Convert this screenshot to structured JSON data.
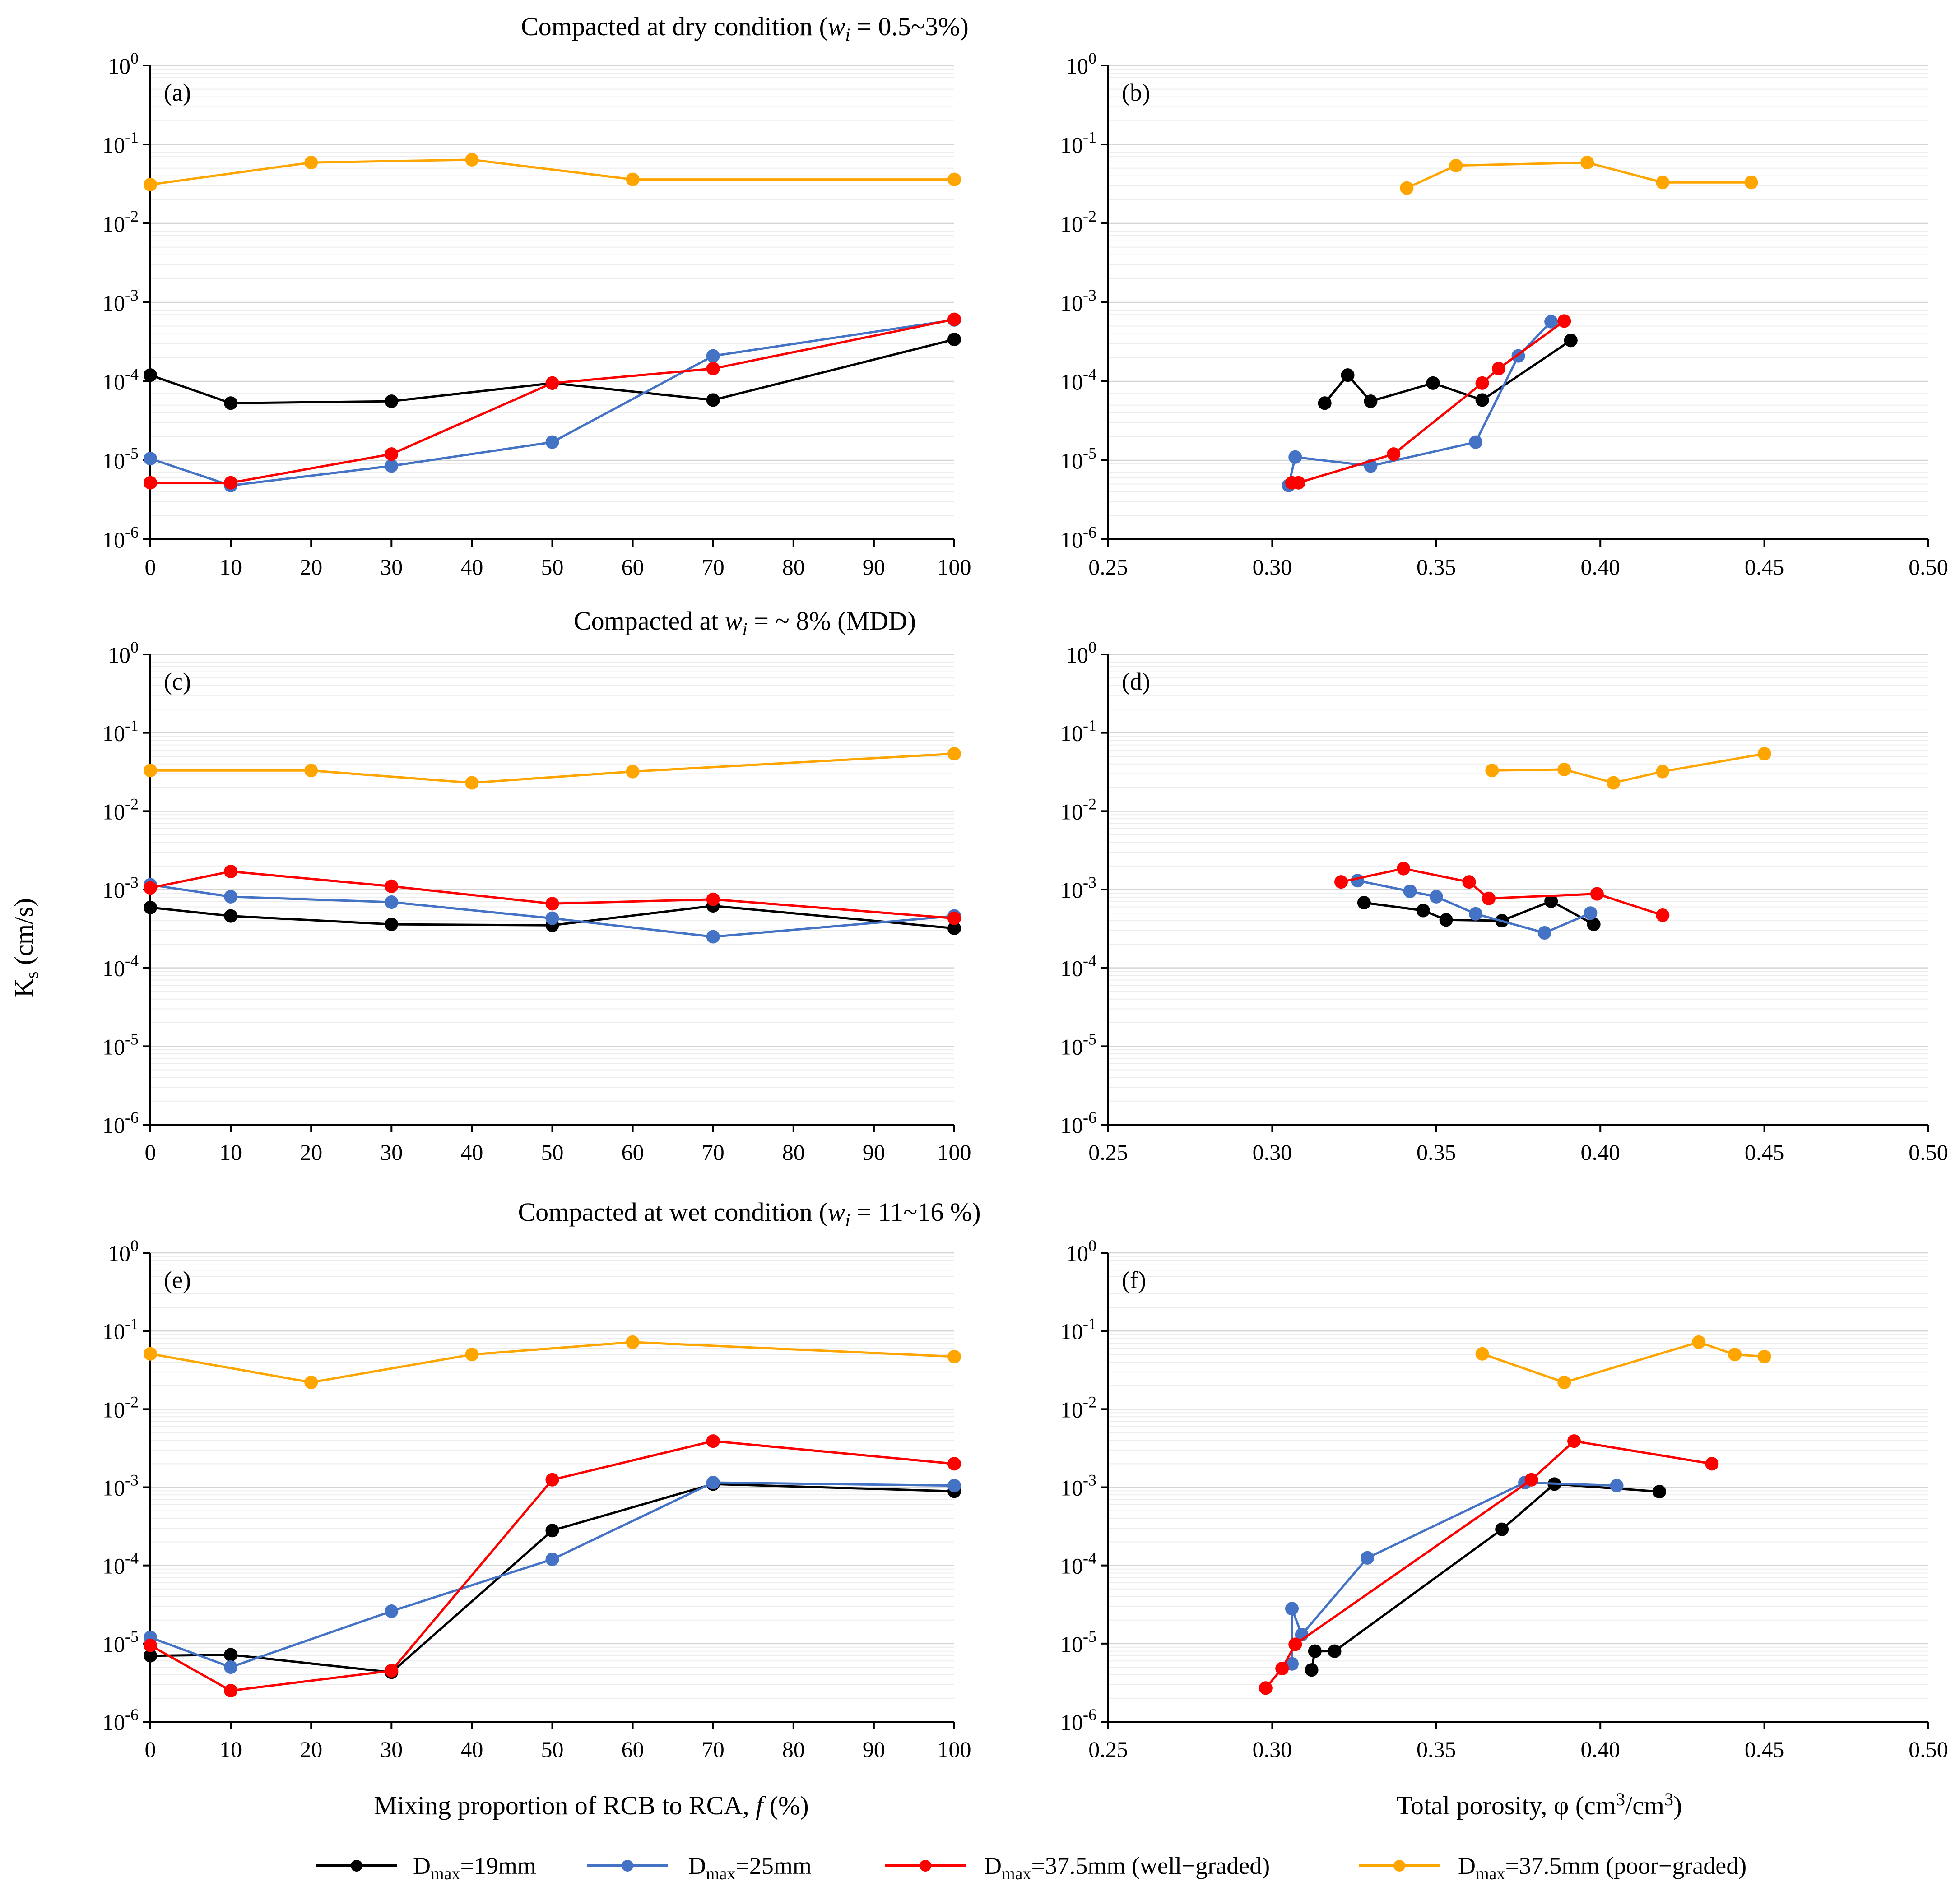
{
  "figure": {
    "row_titles": [
      "Compacted at dry condition (w_i = 0.5~3%)",
      "Compacted at w_i = ~ 8% (MDD)",
      "Compacted at wet condition (w_i = 11~16 %)"
    ],
    "row_title_parts": [
      {
        "before": "Compacted at dry condition (",
        "var": "w",
        "sub": "i",
        "after": " = 0.5~3%)"
      },
      {
        "before": "Compacted at ",
        "var": "w",
        "sub": "i",
        "after": " = ~ 8% (MDD)"
      },
      {
        "before": "Compacted at wet condition (",
        "var": "w",
        "sub": "i",
        "after": " = 11~16 %)"
      }
    ],
    "ylabel": "Ks (cm/s)",
    "ylabel_parts": {
      "main": "K",
      "sub": "s",
      "after": " (cm/s)"
    },
    "xlabel_left": "Mixing proportion of RCB to RCA, f (%)",
    "xlabel_left_parts": {
      "before": "Mixing proportion of RCB to RCA, ",
      "var": "f",
      "after": " (%)"
    },
    "xlabel_right": "Total porosity, φ (cm3/cm3)",
    "xlabel_right_parts": {
      "before": "Total porosity, φ (cm",
      "sup1": "3",
      "mid": "/cm",
      "sup2": "3",
      "after": ")"
    },
    "legend_placement": "bottom",
    "legend": [
      {
        "name": "Dmax=19mm",
        "main": "D",
        "sub": "max",
        "rest": "=19mm",
        "color": "#000000"
      },
      {
        "name": "Dmax=25mm",
        "main": "D",
        "sub": "max",
        "rest": "=25mm",
        "color": "#4472C4"
      },
      {
        "name": "Dmax=37.5mm (well-graded)",
        "main": "D",
        "sub": "max",
        "rest": "=37.5mm (well−graded)",
        "color": "#FF0000"
      },
      {
        "name": "Dmax=37.5mm (poor-graded)",
        "main": "D",
        "sub": "max",
        "rest": "=37.5mm (poor−graded)",
        "color": "#FFA500"
      }
    ]
  },
  "chart_data": [
    {
      "panel": "(a)",
      "type": "line",
      "xscale": "linear",
      "yscale": "log",
      "xlim": [
        0,
        100
      ],
      "xticks": [
        "0",
        "10",
        "20",
        "30",
        "40",
        "50",
        "60",
        "70",
        "80",
        "90",
        "100"
      ],
      "ylim": [
        1e-06,
        1
      ],
      "yticks": [
        "10-6",
        "10-5",
        "10-4",
        "10-3",
        "10-2",
        "10-1",
        "100"
      ],
      "series": [
        {
          "name": "Dmax=19mm",
          "color": "#000000",
          "x": [
            0,
            10,
            30,
            50,
            70,
            100
          ],
          "y": [
            0.00012,
            5.3e-05,
            5.6e-05,
            9.5e-05,
            5.8e-05,
            0.00034
          ]
        },
        {
          "name": "Dmax=25mm",
          "color": "#4472C4",
          "x": [
            0,
            10,
            30,
            50,
            70,
            100
          ],
          "y": [
            1.05e-05,
            4.8e-06,
            8.5e-06,
            1.7e-05,
            0.00021,
            0.0006
          ]
        },
        {
          "name": "Dmax=37.5mm (well-graded)",
          "color": "#FF0000",
          "x": [
            0,
            10,
            30,
            50,
            70,
            100
          ],
          "y": [
            5.2e-06,
            5.2e-06,
            1.2e-05,
            9.5e-05,
            0.000145,
            0.00061
          ]
        },
        {
          "name": "Dmax=37.5mm (poor-graded)",
          "color": "#FFA500",
          "x": [
            0,
            20,
            40,
            60,
            100
          ],
          "y": [
            0.031,
            0.059,
            0.064,
            0.036,
            0.036
          ]
        }
      ]
    },
    {
      "panel": "(b)",
      "type": "line",
      "xscale": "linear",
      "yscale": "log",
      "xlim": [
        0.25,
        0.5
      ],
      "xticks": [
        "0.25",
        "0.30",
        "0.35",
        "0.40",
        "0.45",
        "0.50"
      ],
      "ylim": [
        1e-06,
        1
      ],
      "yticks": [
        "10-6",
        "10-5",
        "10-4",
        "10-3",
        "10-2",
        "10-1",
        "100"
      ],
      "series": [
        {
          "name": "Dmax=19mm",
          "color": "#000000",
          "x": [
            0.316,
            0.323,
            0.33,
            0.349,
            0.364,
            0.391
          ],
          "y": [
            5.3e-05,
            0.00012,
            5.6e-05,
            9.5e-05,
            5.8e-05,
            0.00033
          ]
        },
        {
          "name": "Dmax=25mm",
          "color": "#4472C4",
          "x": [
            0.305,
            0.307,
            0.33,
            0.362,
            0.375,
            0.385
          ],
          "y": [
            4.8e-06,
            1.1e-05,
            8.5e-06,
            1.7e-05,
            0.00021,
            0.00057
          ]
        },
        {
          "name": "Dmax=37.5mm (well-graded)",
          "color": "#FF0000",
          "x": [
            0.306,
            0.308,
            0.337,
            0.364,
            0.369,
            0.389
          ],
          "y": [
            5.2e-06,
            5.2e-06,
            1.2e-05,
            9.5e-05,
            0.000145,
            0.00058
          ]
        },
        {
          "name": "Dmax=37.5mm (poor-graded)",
          "color": "#FFA500",
          "x": [
            0.341,
            0.356,
            0.396,
            0.419,
            0.446
          ],
          "y": [
            0.028,
            0.054,
            0.059,
            0.033,
            0.033
          ]
        }
      ]
    },
    {
      "panel": "(c)",
      "type": "line",
      "xscale": "linear",
      "yscale": "log",
      "xlim": [
        0,
        100
      ],
      "xticks": [
        "0",
        "10",
        "20",
        "30",
        "40",
        "50",
        "60",
        "70",
        "80",
        "90",
        "100"
      ],
      "ylim": [
        1e-06,
        1
      ],
      "yticks": [
        "10-6",
        "10-5",
        "10-4",
        "10-3",
        "10-2",
        "10-1",
        "100"
      ],
      "series": [
        {
          "name": "Dmax=19mm",
          "color": "#000000",
          "x": [
            0,
            10,
            30,
            50,
            70,
            100
          ],
          "y": [
            0.00059,
            0.00046,
            0.00036,
            0.00035,
            0.00062,
            0.00032
          ]
        },
        {
          "name": "Dmax=25mm",
          "color": "#4472C4",
          "x": [
            0,
            10,
            30,
            50,
            70,
            100
          ],
          "y": [
            0.00115,
            0.00081,
            0.00069,
            0.00043,
            0.00025,
            0.00046
          ]
        },
        {
          "name": "Dmax=37.5mm (well-graded)",
          "color": "#FF0000",
          "x": [
            0,
            10,
            30,
            50,
            70,
            100
          ],
          "y": [
            0.00105,
            0.0017,
            0.0011,
            0.00066,
            0.00075,
            0.00043
          ]
        },
        {
          "name": "Dmax=37.5mm (poor-graded)",
          "color": "#FFA500",
          "x": [
            0,
            20,
            40,
            60,
            100
          ],
          "y": [
            0.033,
            0.033,
            0.023,
            0.032,
            0.054
          ]
        }
      ]
    },
    {
      "panel": "(d)",
      "type": "line",
      "xscale": "linear",
      "yscale": "log",
      "xlim": [
        0.25,
        0.5
      ],
      "xticks": [
        "0.25",
        "0.30",
        "0.35",
        "0.40",
        "0.45",
        "0.50"
      ],
      "ylim": [
        1e-06,
        1
      ],
      "yticks": [
        "10-6",
        "10-5",
        "10-4",
        "10-3",
        "10-2",
        "10-1",
        "100"
      ],
      "series": [
        {
          "name": "Dmax=19mm",
          "color": "#000000",
          "x": [
            0.328,
            0.346,
            0.353,
            0.37,
            0.385,
            0.398
          ],
          "y": [
            0.00068,
            0.00054,
            0.00041,
            0.0004,
            0.00071,
            0.00036
          ]
        },
        {
          "name": "Dmax=25mm",
          "color": "#4472C4",
          "x": [
            0.326,
            0.342,
            0.35,
            0.362,
            0.383,
            0.397
          ],
          "y": [
            0.0013,
            0.00095,
            0.00081,
            0.00049,
            0.00028,
            0.0005
          ]
        },
        {
          "name": "Dmax=37.5mm (well-graded)",
          "color": "#FF0000",
          "x": [
            0.321,
            0.34,
            0.36,
            0.366,
            0.399,
            0.419
          ],
          "y": [
            0.00125,
            0.00185,
            0.00125,
            0.00077,
            0.00088,
            0.00047
          ]
        },
        {
          "name": "Dmax=37.5mm (poor-graded)",
          "color": "#FFA500",
          "x": [
            0.367,
            0.389,
            0.404,
            0.419,
            0.45
          ],
          "y": [
            0.033,
            0.034,
            0.023,
            0.032,
            0.054
          ]
        }
      ]
    },
    {
      "panel": "(e)",
      "type": "line",
      "xscale": "linear",
      "yscale": "log",
      "xlim": [
        0,
        100
      ],
      "xticks": [
        "0",
        "10",
        "20",
        "30",
        "40",
        "50",
        "60",
        "70",
        "80",
        "90",
        "100"
      ],
      "ylim": [
        1e-06,
        1
      ],
      "yticks": [
        "10-6",
        "10-5",
        "10-4",
        "10-3",
        "10-2",
        "10-1",
        "100"
      ],
      "series": [
        {
          "name": "Dmax=19mm",
          "color": "#000000",
          "x": [
            0,
            10,
            30,
            50,
            70,
            100
          ],
          "y": [
            7e-06,
            7.2e-06,
            4.3e-06,
            0.00028,
            0.0011,
            0.00089
          ]
        },
        {
          "name": "Dmax=25mm",
          "color": "#4472C4",
          "x": [
            0,
            10,
            30,
            50,
            70,
            100
          ],
          "y": [
            1.2e-05,
            5e-06,
            2.6e-05,
            0.00012,
            0.00115,
            0.00105
          ]
        },
        {
          "name": "Dmax=37.5mm (well-graded)",
          "color": "#FF0000",
          "x": [
            0,
            10,
            30,
            50,
            70,
            100
          ],
          "y": [
            9.5e-06,
            2.5e-06,
            4.5e-06,
            0.00125,
            0.0039,
            0.002
          ]
        },
        {
          "name": "Dmax=37.5mm (poor-graded)",
          "color": "#FFA500",
          "x": [
            0,
            20,
            40,
            60,
            100
          ],
          "y": [
            0.051,
            0.022,
            0.05,
            0.072,
            0.047
          ]
        }
      ]
    },
    {
      "panel": "(f)",
      "type": "line",
      "xscale": "linear",
      "yscale": "log",
      "xlim": [
        0.25,
        0.5
      ],
      "xticks": [
        "0.25",
        "0.30",
        "0.35",
        "0.40",
        "0.45",
        "0.50"
      ],
      "ylim": [
        1e-06,
        1
      ],
      "yticks": [
        "10-6",
        "10-5",
        "10-4",
        "10-3",
        "10-2",
        "10-1",
        "100"
      ],
      "series": [
        {
          "name": "Dmax=19mm",
          "color": "#000000",
          "x": [
            0.312,
            0.313,
            0.319,
            0.37,
            0.386,
            0.418
          ],
          "y": [
            4.6e-06,
            8e-06,
            8e-06,
            0.00029,
            0.0011,
            0.00088
          ]
        },
        {
          "name": "Dmax=25mm",
          "color": "#4472C4",
          "x": [
            0.306,
            0.306,
            0.309,
            0.329,
            0.377,
            0.405
          ],
          "y": [
            5.5e-06,
            2.8e-05,
            1.3e-05,
            0.000125,
            0.00115,
            0.00105
          ]
        },
        {
          "name": "Dmax=37.5mm (well-graded)",
          "color": "#FF0000",
          "x": [
            0.298,
            0.303,
            0.307,
            0.379,
            0.392,
            0.434
          ],
          "y": [
            2.7e-06,
            4.8e-06,
            9.8e-06,
            0.00125,
            0.0039,
            0.002
          ]
        },
        {
          "name": "Dmax=37.5mm (poor-graded)",
          "color": "#FFA500",
          "x": [
            0.364,
            0.389,
            0.43,
            0.441,
            0.45
          ],
          "y": [
            0.051,
            0.022,
            0.072,
            0.05,
            0.047
          ]
        }
      ]
    }
  ]
}
